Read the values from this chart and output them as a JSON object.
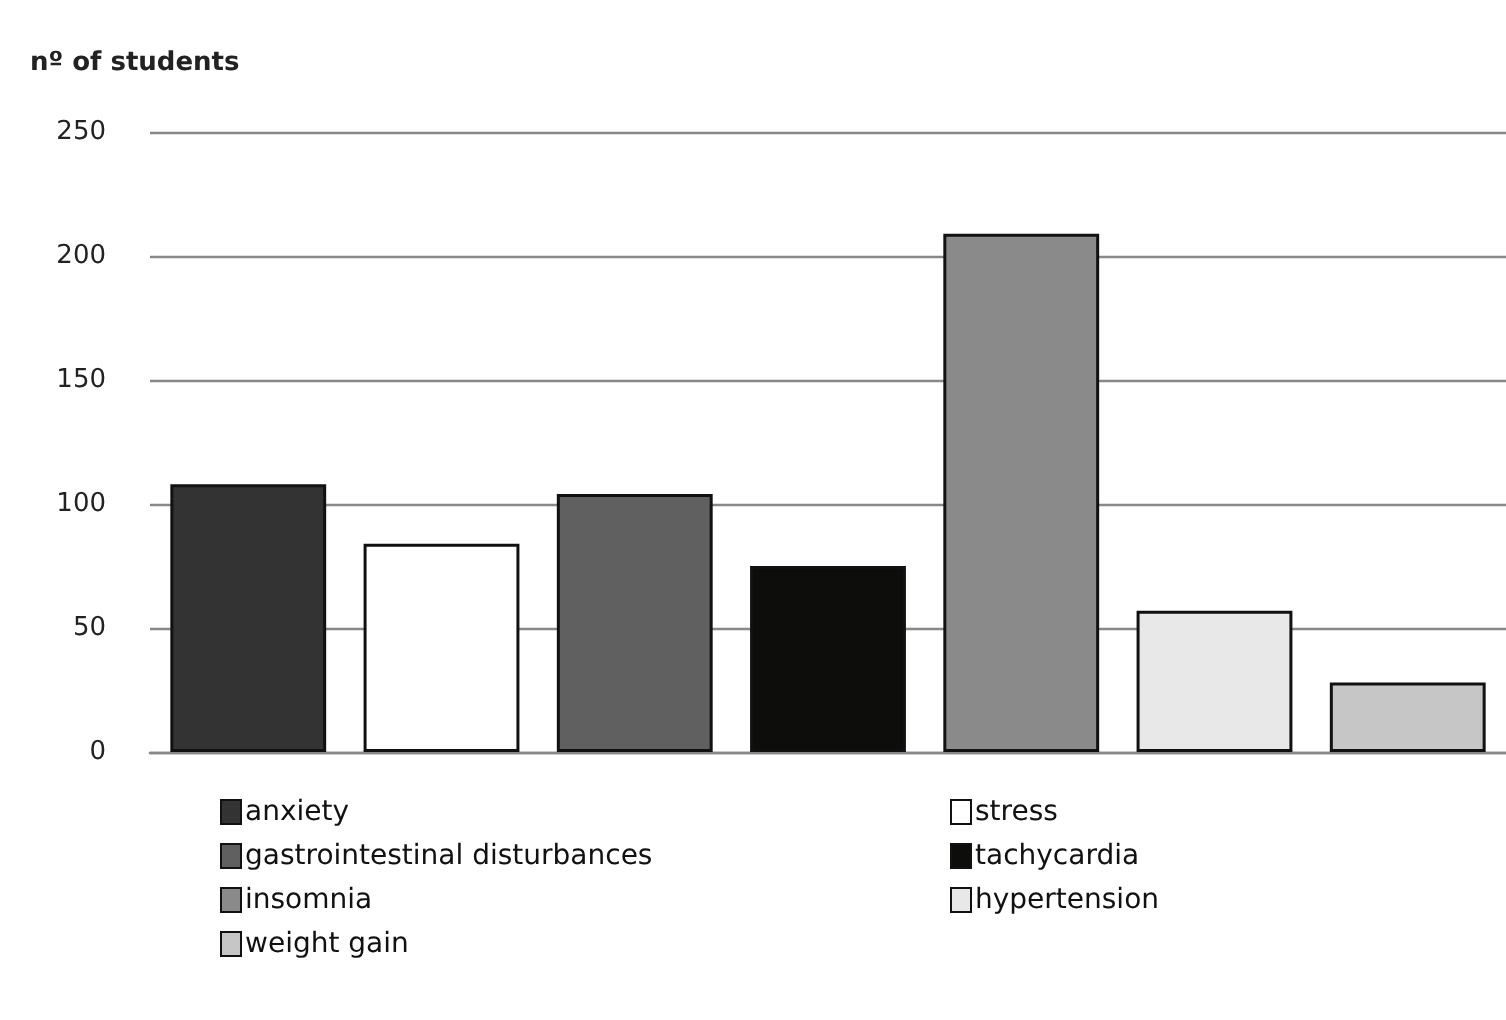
{
  "chart_data": {
    "type": "bar",
    "ylabel": "nº of students",
    "categories": [
      null
    ],
    "series": [
      {
        "name": "anxiety",
        "color": "#333333",
        "values": [
          108
        ]
      },
      {
        "name": "stress",
        "color": "#ffffff",
        "values": [
          84
        ]
      },
      {
        "name": "gastrointestinal disturbances",
        "color": "#606060",
        "values": [
          104
        ]
      },
      {
        "name": "tachycardia",
        "color": "#0d0d0b",
        "values": [
          75
        ]
      },
      {
        "name": "insomnia",
        "color": "#8a8a8a",
        "values": [
          209
        ]
      },
      {
        "name": "hypertension",
        "color": "#e8e8e8",
        "values": [
          57
        ]
      },
      {
        "name": "weight gain",
        "color": "#c6c6c6",
        "values": [
          28
        ]
      }
    ],
    "ylim": [
      0,
      250
    ],
    "yticks": [
      0,
      50,
      100,
      150,
      200,
      250
    ],
    "grid": "y",
    "legend": "bottom"
  }
}
